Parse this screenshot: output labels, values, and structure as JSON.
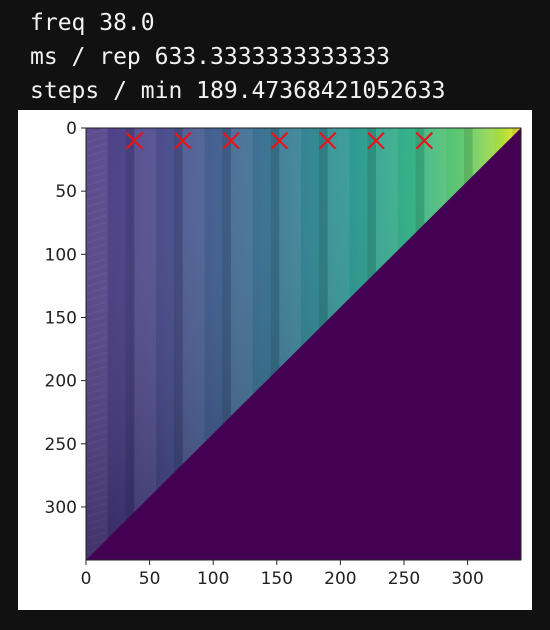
{
  "console": {
    "line_1": "freq 38.0",
    "line_2": "ms / rep 633.3333333333333",
    "line_3": "steps / min 189.47368421052633"
  },
  "chart_data": {
    "type": "heatmap",
    "title": "",
    "xlabel": "",
    "ylabel": "",
    "xlim": [
      0,
      342
    ],
    "ylim": [
      342,
      0
    ],
    "colormap": "viridis",
    "grid": false,
    "structure": "upper-triangular; values increase toward the right with periodic vertical bands every ~38 columns; lower-left triangle is the minimum value",
    "x_ticks": [
      {
        "value": 0,
        "label": "0"
      },
      {
        "value": 50,
        "label": "50"
      },
      {
        "value": 100,
        "label": "100"
      },
      {
        "value": 150,
        "label": "150"
      },
      {
        "value": 200,
        "label": "200"
      },
      {
        "value": 250,
        "label": "250"
      },
      {
        "value": 300,
        "label": "300"
      }
    ],
    "y_ticks": [
      {
        "value": 0,
        "label": "0"
      },
      {
        "value": 50,
        "label": "50"
      },
      {
        "value": 100,
        "label": "100"
      },
      {
        "value": 150,
        "label": "150"
      },
      {
        "value": 200,
        "label": "200"
      },
      {
        "value": 250,
        "label": "250"
      },
      {
        "value": 300,
        "label": "300"
      }
    ],
    "markers": {
      "symbol": "x",
      "color": "#e8141c",
      "points": [
        {
          "x": 38,
          "y": 10
        },
        {
          "x": 76,
          "y": 10
        },
        {
          "x": 114,
          "y": 10
        },
        {
          "x": 152,
          "y": 10
        },
        {
          "x": 190,
          "y": 10
        },
        {
          "x": 228,
          "y": 10
        },
        {
          "x": 266,
          "y": 10
        }
      ]
    },
    "background_color": "#440154"
  }
}
